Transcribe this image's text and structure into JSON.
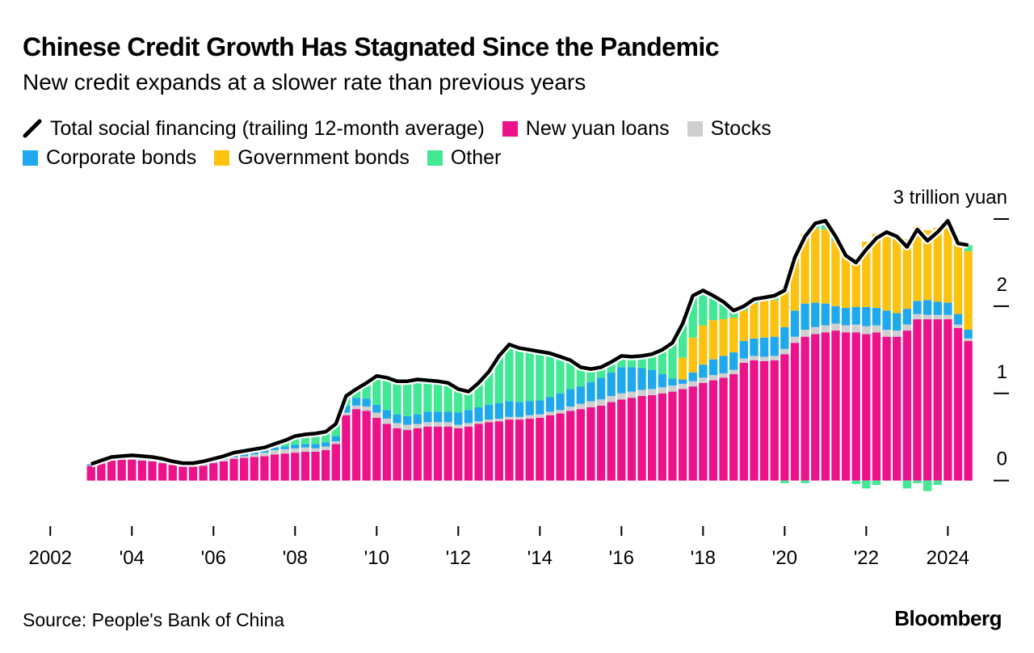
{
  "title": "Chinese Credit Growth Has Stagnated Since the Pandemic",
  "subtitle": "New credit expands at a slower rate than previous years",
  "source": "Source: People's Bank of China",
  "brand": "Bloomberg",
  "chart_data": {
    "type": "bar",
    "stacked": true,
    "x": [
      2003,
      2003.25,
      2003.5,
      2003.75,
      2004,
      2004.25,
      2004.5,
      2004.75,
      2005,
      2005.25,
      2005.5,
      2005.75,
      2006,
      2006.25,
      2006.5,
      2006.75,
      2007,
      2007.25,
      2007.5,
      2007.75,
      2008,
      2008.25,
      2008.5,
      2008.75,
      2009,
      2009.25,
      2009.5,
      2009.75,
      2010,
      2010.25,
      2010.5,
      2010.75,
      2011,
      2011.25,
      2011.5,
      2011.75,
      2012,
      2012.25,
      2012.5,
      2012.75,
      2013,
      2013.25,
      2013.5,
      2013.75,
      2014,
      2014.25,
      2014.5,
      2014.75,
      2015,
      2015.25,
      2015.5,
      2015.75,
      2016,
      2016.25,
      2016.5,
      2016.75,
      2017,
      2017.25,
      2017.5,
      2017.75,
      2018,
      2018.25,
      2018.5,
      2018.75,
      2019,
      2019.25,
      2019.5,
      2019.75,
      2020,
      2020.25,
      2020.5,
      2020.75,
      2021,
      2021.25,
      2021.5,
      2021.75,
      2022,
      2022.25,
      2022.5,
      2022.75,
      2023,
      2023.25,
      2023.5,
      2023.75,
      2024,
      2024.25,
      2024.5
    ],
    "series": [
      {
        "name": "Total social financing (trailing 12-month average)",
        "type": "line",
        "color": "#000000",
        "values": [
          0.19,
          0.23,
          0.27,
          0.28,
          0.29,
          0.28,
          0.27,
          0.25,
          0.22,
          0.2,
          0.2,
          0.22,
          0.25,
          0.28,
          0.32,
          0.34,
          0.36,
          0.38,
          0.42,
          0.46,
          0.51,
          0.53,
          0.54,
          0.56,
          0.65,
          0.97,
          1.05,
          1.12,
          1.2,
          1.18,
          1.14,
          1.14,
          1.16,
          1.15,
          1.14,
          1.12,
          1.05,
          1.02,
          1.12,
          1.25,
          1.43,
          1.56,
          1.52,
          1.5,
          1.48,
          1.46,
          1.42,
          1.38,
          1.3,
          1.28,
          1.3,
          1.36,
          1.43,
          1.42,
          1.43,
          1.45,
          1.5,
          1.58,
          1.8,
          2.12,
          2.18,
          2.12,
          2.05,
          1.95,
          2.0,
          2.08,
          2.1,
          2.12,
          2.18,
          2.56,
          2.8,
          2.95,
          2.98,
          2.8,
          2.58,
          2.5,
          2.65,
          2.78,
          2.85,
          2.8,
          2.68,
          2.88,
          2.75,
          2.85,
          2.98,
          2.72,
          2.7
        ]
      },
      {
        "name": "New yuan loans",
        "type": "bar",
        "color": "#ec1289",
        "values": [
          0.17,
          0.2,
          0.23,
          0.24,
          0.24,
          0.23,
          0.22,
          0.2,
          0.18,
          0.16,
          0.16,
          0.17,
          0.2,
          0.22,
          0.25,
          0.26,
          0.27,
          0.28,
          0.3,
          0.31,
          0.32,
          0.33,
          0.33,
          0.35,
          0.42,
          0.75,
          0.82,
          0.8,
          0.72,
          0.65,
          0.6,
          0.58,
          0.6,
          0.62,
          0.62,
          0.62,
          0.6,
          0.62,
          0.65,
          0.67,
          0.68,
          0.7,
          0.7,
          0.71,
          0.72,
          0.75,
          0.77,
          0.8,
          0.82,
          0.84,
          0.86,
          0.9,
          0.93,
          0.95,
          0.97,
          0.98,
          1.0,
          1.02,
          1.05,
          1.08,
          1.12,
          1.15,
          1.18,
          1.22,
          1.35,
          1.38,
          1.37,
          1.38,
          1.45,
          1.58,
          1.65,
          1.68,
          1.7,
          1.72,
          1.7,
          1.7,
          1.68,
          1.7,
          1.65,
          1.65,
          1.72,
          1.85,
          1.85,
          1.85,
          1.85,
          1.75,
          1.6
        ]
      },
      {
        "name": "Stocks",
        "type": "bar",
        "color": "#cfcfcf",
        "values": [
          0.01,
          0.01,
          0.01,
          0.01,
          0.01,
          0.01,
          0.01,
          0.01,
          0.01,
          0.01,
          0.01,
          0.01,
          0.01,
          0.02,
          0.02,
          0.02,
          0.03,
          0.04,
          0.05,
          0.05,
          0.05,
          0.05,
          0.04,
          0.04,
          0.03,
          0.03,
          0.04,
          0.05,
          0.06,
          0.06,
          0.06,
          0.06,
          0.05,
          0.05,
          0.05,
          0.05,
          0.04,
          0.04,
          0.03,
          0.03,
          0.03,
          0.03,
          0.03,
          0.04,
          0.04,
          0.04,
          0.04,
          0.05,
          0.06,
          0.07,
          0.07,
          0.07,
          0.07,
          0.07,
          0.07,
          0.07,
          0.07,
          0.07,
          0.06,
          0.06,
          0.06,
          0.06,
          0.05,
          0.05,
          0.05,
          0.05,
          0.05,
          0.05,
          0.06,
          0.07,
          0.08,
          0.08,
          0.08,
          0.08,
          0.08,
          0.09,
          0.09,
          0.08,
          0.08,
          0.07,
          0.07,
          0.06,
          0.05,
          0.05,
          0.05,
          0.04,
          0.03
        ]
      },
      {
        "name": "Corporate bonds",
        "type": "bar",
        "color": "#1fa9ec",
        "values": [
          0.01,
          0.01,
          0.01,
          0.01,
          0.01,
          0.01,
          0.01,
          0.01,
          0.02,
          0.02,
          0.02,
          0.02,
          0.02,
          0.02,
          0.02,
          0.03,
          0.03,
          0.03,
          0.03,
          0.03,
          0.04,
          0.04,
          0.05,
          0.05,
          0.06,
          0.08,
          0.09,
          0.09,
          0.09,
          0.1,
          0.1,
          0.1,
          0.11,
          0.12,
          0.12,
          0.12,
          0.14,
          0.15,
          0.16,
          0.17,
          0.18,
          0.18,
          0.17,
          0.16,
          0.16,
          0.17,
          0.19,
          0.2,
          0.2,
          0.22,
          0.25,
          0.27,
          0.3,
          0.28,
          0.25,
          0.22,
          0.15,
          0.08,
          0.05,
          0.1,
          0.15,
          0.18,
          0.2,
          0.2,
          0.2,
          0.2,
          0.22,
          0.22,
          0.25,
          0.3,
          0.3,
          0.28,
          0.25,
          0.2,
          0.2,
          0.2,
          0.22,
          0.2,
          0.22,
          0.2,
          0.18,
          0.15,
          0.17,
          0.15,
          0.14,
          0.12,
          0.1
        ]
      },
      {
        "name": "Government bonds",
        "type": "bar",
        "color": "#fcc20f",
        "values": [
          0,
          0,
          0,
          0,
          0,
          0,
          0,
          0,
          0,
          0,
          0,
          0,
          0,
          0,
          0,
          0,
          0,
          0,
          0,
          0,
          0,
          0,
          0,
          0,
          0,
          0,
          0,
          0,
          0,
          0,
          0,
          0,
          0,
          0,
          0,
          0,
          0,
          0,
          0,
          0,
          0,
          0,
          0,
          0,
          0,
          0,
          0,
          0,
          0,
          0,
          0,
          0,
          0,
          0,
          0,
          0,
          0,
          0,
          0.25,
          0.4,
          0.45,
          0.45,
          0.42,
          0.4,
          0.35,
          0.4,
          0.42,
          0.42,
          0.45,
          0.6,
          0.8,
          0.85,
          0.85,
          0.75,
          0.6,
          0.55,
          0.75,
          0.85,
          0.85,
          0.85,
          0.8,
          0.85,
          0.8,
          0.85,
          0.9,
          0.8,
          0.9
        ]
      },
      {
        "name": "Other",
        "type": "bar",
        "color": "#43e894",
        "values": [
          0,
          0.01,
          0.02,
          0.02,
          0.03,
          0.03,
          0.03,
          0.03,
          0.01,
          0.01,
          0.01,
          0.02,
          0.02,
          0.02,
          0.03,
          0.03,
          0.03,
          0.03,
          0.04,
          0.07,
          0.1,
          0.11,
          0.12,
          0.12,
          0.14,
          0.11,
          0.1,
          0.18,
          0.33,
          0.37,
          0.38,
          0.4,
          0.4,
          0.36,
          0.35,
          0.33,
          0.27,
          0.21,
          0.28,
          0.38,
          0.54,
          0.65,
          0.62,
          0.59,
          0.56,
          0.5,
          0.42,
          0.33,
          0.22,
          0.15,
          0.12,
          0.12,
          0.13,
          0.12,
          0.14,
          0.18,
          0.28,
          0.41,
          0.39,
          0.48,
          0.4,
          0.28,
          0.2,
          0.08,
          0.05,
          0.05,
          0.04,
          0.05,
          -0.03,
          0.01,
          -0.03,
          0.06,
          0.1,
          0.05,
          0,
          -0.04,
          -0.09,
          -0.05,
          0.05,
          0.03,
          -0.09,
          -0.03,
          -0.12,
          -0.05,
          0.04,
          0.01,
          0.07
        ]
      }
    ],
    "xlim": [
      2001.5,
      2025.3
    ],
    "xticks": [
      2002,
      {
        "value": 2004,
        "label": "'04"
      },
      {
        "value": 2006,
        "label": "'06"
      },
      {
        "value": 2008,
        "label": "'08"
      },
      {
        "value": 2010,
        "label": "'10"
      },
      {
        "value": 2012,
        "label": "'12"
      },
      {
        "value": 2014,
        "label": "'14"
      },
      {
        "value": 2016,
        "label": "'16"
      },
      {
        "value": 2018,
        "label": "'18"
      },
      {
        "value": 2020,
        "label": "'20"
      },
      {
        "value": 2022,
        "label": "'22"
      },
      2024
    ],
    "ylim": [
      -0.55,
      3.25
    ],
    "yticks": [
      0,
      1,
      2,
      {
        "value": 3,
        "label": "3 trillion yuan"
      }
    ]
  }
}
